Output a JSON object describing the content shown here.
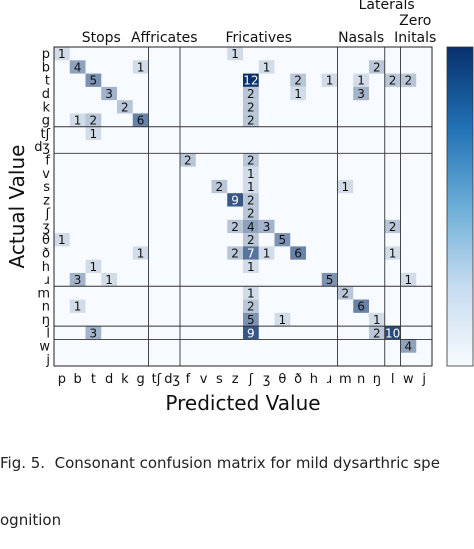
{
  "caption": {
    "line1": "Fig. 5.  Consonant confusion matrix for mild dysarthric spe",
    "line2": "ognition"
  },
  "chart_data": {
    "type": "heatmap",
    "title": "",
    "xlabel": "Predicted Value",
    "ylabel": "Actual Value",
    "x_categories": [
      "p",
      "b",
      "t",
      "d",
      "k",
      "g",
      "tʃ",
      "dʒ",
      "f",
      "v",
      "s",
      "z",
      "ʃ",
      "ʒ",
      "θ",
      "ð",
      "h",
      "ɹ",
      "m",
      "n",
      "ŋ",
      "l",
      "w",
      "j"
    ],
    "y_categories": [
      "p",
      "b",
      "t",
      "d",
      "k",
      "g",
      "tʃ",
      "dʒ",
      "f",
      "v",
      "s",
      "z",
      "ʃ",
      "ʒ",
      "θ",
      "ð",
      "h",
      "ɹ",
      "m",
      "n",
      "ŋ",
      "l",
      "w",
      "j"
    ],
    "groups": [
      {
        "label": "Stops",
        "start": 0,
        "end": 5
      },
      {
        "label": "Affricates",
        "start": 6,
        "end": 7
      },
      {
        "label": "Fricatives",
        "start": 8,
        "end": 17
      },
      {
        "label": "Nasals",
        "start": 18,
        "end": 20
      },
      {
        "label": "Laterals",
        "start": 21,
        "end": 21
      },
      {
        "label": "Zero Initals",
        "start": 22,
        "end": 23
      }
    ],
    "cells": [
      {
        "row": 0,
        "col": 0,
        "value": 1
      },
      {
        "row": 0,
        "col": 11,
        "value": 1
      },
      {
        "row": 1,
        "col": 1,
        "value": 4
      },
      {
        "row": 1,
        "col": 5,
        "value": 1
      },
      {
        "row": 1,
        "col": 13,
        "value": 1
      },
      {
        "row": 1,
        "col": 20,
        "value": 2
      },
      {
        "row": 2,
        "col": 2,
        "value": 5
      },
      {
        "row": 2,
        "col": 12,
        "value": 12
      },
      {
        "row": 2,
        "col": 15,
        "value": 2
      },
      {
        "row": 2,
        "col": 17,
        "value": 1
      },
      {
        "row": 2,
        "col": 19,
        "value": 1
      },
      {
        "row": 2,
        "col": 21,
        "value": 2
      },
      {
        "row": 2,
        "col": 22,
        "value": 2
      },
      {
        "row": 3,
        "col": 3,
        "value": 3
      },
      {
        "row": 3,
        "col": 12,
        "value": 2
      },
      {
        "row": 3,
        "col": 15,
        "value": 1
      },
      {
        "row": 3,
        "col": 19,
        "value": 3
      },
      {
        "row": 4,
        "col": 4,
        "value": 2
      },
      {
        "row": 4,
        "col": 12,
        "value": 2
      },
      {
        "row": 5,
        "col": 1,
        "value": 1
      },
      {
        "row": 5,
        "col": 2,
        "value": 2
      },
      {
        "row": 5,
        "col": 5,
        "value": 6
      },
      {
        "row": 5,
        "col": 12,
        "value": 2
      },
      {
        "row": 6,
        "col": 2,
        "value": 1
      },
      {
        "row": 8,
        "col": 8,
        "value": 2
      },
      {
        "row": 8,
        "col": 12,
        "value": 2
      },
      {
        "row": 9,
        "col": 12,
        "value": 1
      },
      {
        "row": 10,
        "col": 10,
        "value": 2
      },
      {
        "row": 10,
        "col": 12,
        "value": 1
      },
      {
        "row": 10,
        "col": 18,
        "value": 1
      },
      {
        "row": 11,
        "col": 11,
        "value": 9
      },
      {
        "row": 11,
        "col": 12,
        "value": 2
      },
      {
        "row": 12,
        "col": 12,
        "value": 2
      },
      {
        "row": 13,
        "col": 11,
        "value": 2
      },
      {
        "row": 13,
        "col": 12,
        "value": 4
      },
      {
        "row": 13,
        "col": 13,
        "value": 3
      },
      {
        "row": 13,
        "col": 21,
        "value": 2
      },
      {
        "row": 14,
        "col": 0,
        "value": 1
      },
      {
        "row": 14,
        "col": 12,
        "value": 2
      },
      {
        "row": 14,
        "col": 14,
        "value": 5
      },
      {
        "row": 15,
        "col": 5,
        "value": 1
      },
      {
        "row": 15,
        "col": 11,
        "value": 2
      },
      {
        "row": 15,
        "col": 12,
        "value": 7
      },
      {
        "row": 15,
        "col": 13,
        "value": 1
      },
      {
        "row": 15,
        "col": 15,
        "value": 6
      },
      {
        "row": 15,
        "col": 21,
        "value": 1
      },
      {
        "row": 16,
        "col": 2,
        "value": 1
      },
      {
        "row": 16,
        "col": 12,
        "value": 1
      },
      {
        "row": 17,
        "col": 1,
        "value": 3
      },
      {
        "row": 17,
        "col": 3,
        "value": 1
      },
      {
        "row": 17,
        "col": 17,
        "value": 5
      },
      {
        "row": 17,
        "col": 22,
        "value": 1
      },
      {
        "row": 18,
        "col": 12,
        "value": 1
      },
      {
        "row": 18,
        "col": 18,
        "value": 2
      },
      {
        "row": 19,
        "col": 1,
        "value": 1
      },
      {
        "row": 19,
        "col": 12,
        "value": 2
      },
      {
        "row": 19,
        "col": 19,
        "value": 6
      },
      {
        "row": 20,
        "col": 12,
        "value": 5
      },
      {
        "row": 20,
        "col": 14,
        "value": 1
      },
      {
        "row": 20,
        "col": 20,
        "value": 1
      },
      {
        "row": 21,
        "col": 2,
        "value": 3
      },
      {
        "row": 21,
        "col": 12,
        "value": 9
      },
      {
        "row": 21,
        "col": 20,
        "value": 2
      },
      {
        "row": 21,
        "col": 21,
        "value": 10
      },
      {
        "row": 22,
        "col": 22,
        "value": 4
      }
    ],
    "max_value": 12,
    "colormap": "Blues",
    "colors": {
      "low": "#f7fbff",
      "high": "#08306b"
    }
  }
}
